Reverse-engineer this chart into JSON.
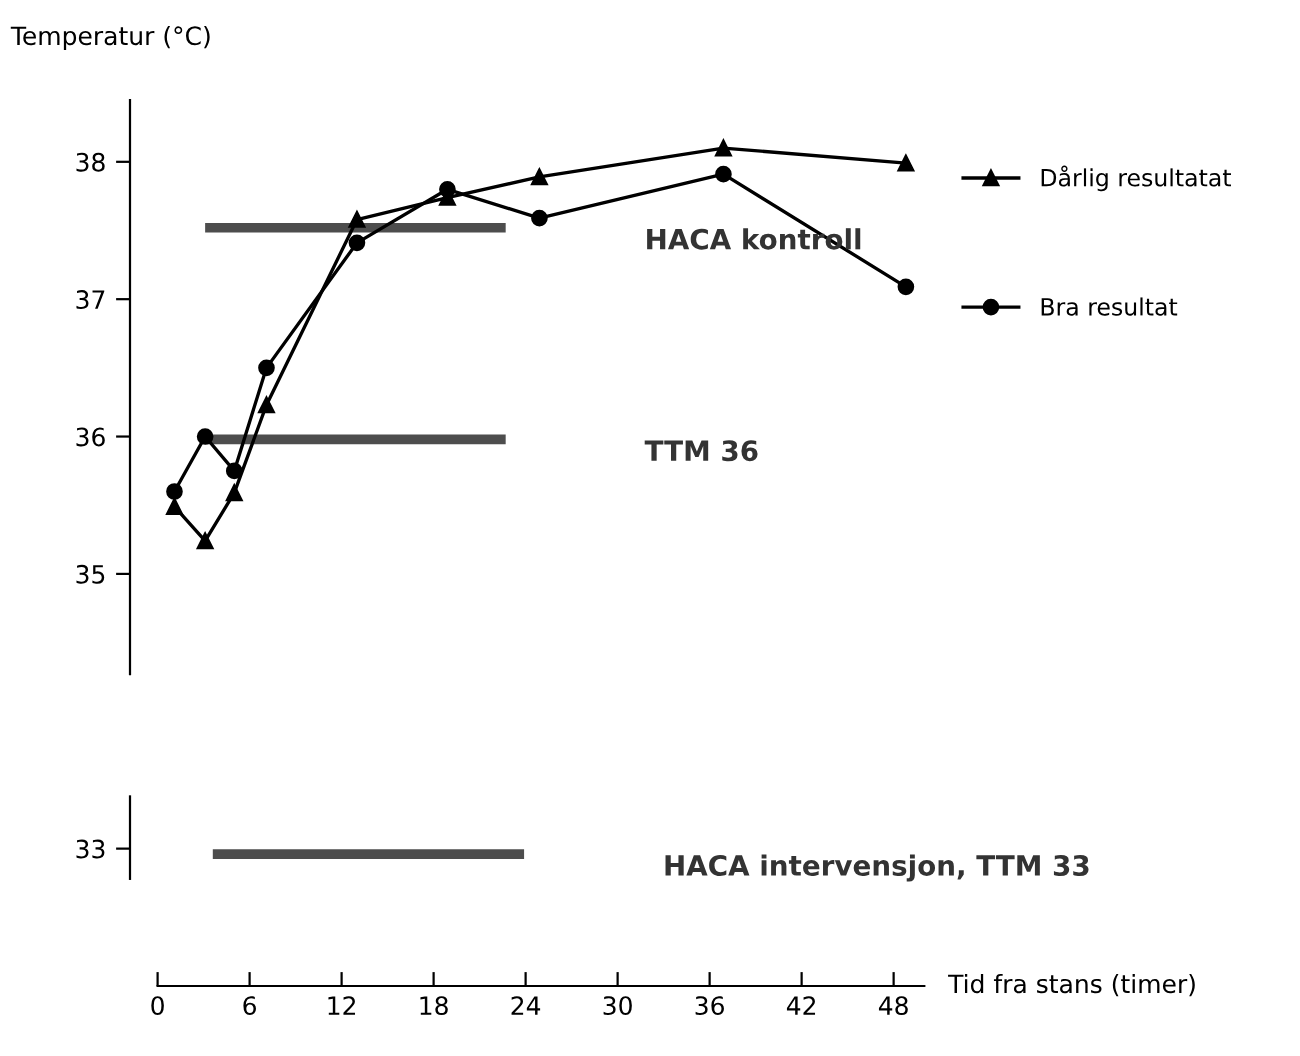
{
  "chart_data": {
    "type": "line",
    "ylabel": "Temperatur (°C)",
    "xlabel": "Tid fra stans (timer)",
    "xlim": [
      -1.8,
      50
    ],
    "ylim": [
      32.0,
      38.45
    ],
    "yticks": [
      33,
      35,
      36,
      37,
      38
    ],
    "xticks": [
      0,
      6,
      12,
      18,
      24,
      30,
      36,
      42,
      48
    ],
    "legend": "right",
    "series": [
      {
        "name": "Dårlig resultatat",
        "color": "#000000",
        "marker": "triangle",
        "x": [
          1.1,
          3.1,
          5.0,
          7.1,
          13.0,
          18.9,
          24.9,
          36.9,
          48.8
        ],
        "values": [
          35.49,
          35.24,
          35.59,
          36.23,
          37.58,
          37.74,
          37.89,
          38.1,
          37.99
        ]
      },
      {
        "name": "Bra resultat",
        "color": "#000000",
        "marker": "circle",
        "x": [
          1.1,
          3.1,
          5.0,
          7.1,
          13.0,
          18.9,
          24.9,
          36.9,
          48.8
        ],
        "values": [
          35.6,
          36.0,
          35.75,
          36.5,
          37.41,
          37.8,
          37.59,
          37.91,
          37.09
        ]
      },
      {
        "name": "HACA kontroll",
        "color": "#4d4d4d",
        "marker": "none",
        "x": [
          3.1,
          22.7
        ],
        "values": [
          37.52,
          37.52
        ]
      },
      {
        "name": "TTM 36",
        "color": "#4d4d4d",
        "marker": "none",
        "x": [
          3.1,
          22.7
        ],
        "values": [
          35.98,
          35.98
        ]
      },
      {
        "name": "HACA intervensjon, TTM 33",
        "color": "#4d4d4d",
        "marker": "none",
        "x": [
          3.6,
          23.9
        ],
        "values": [
          32.96,
          32.96
        ]
      }
    ]
  }
}
